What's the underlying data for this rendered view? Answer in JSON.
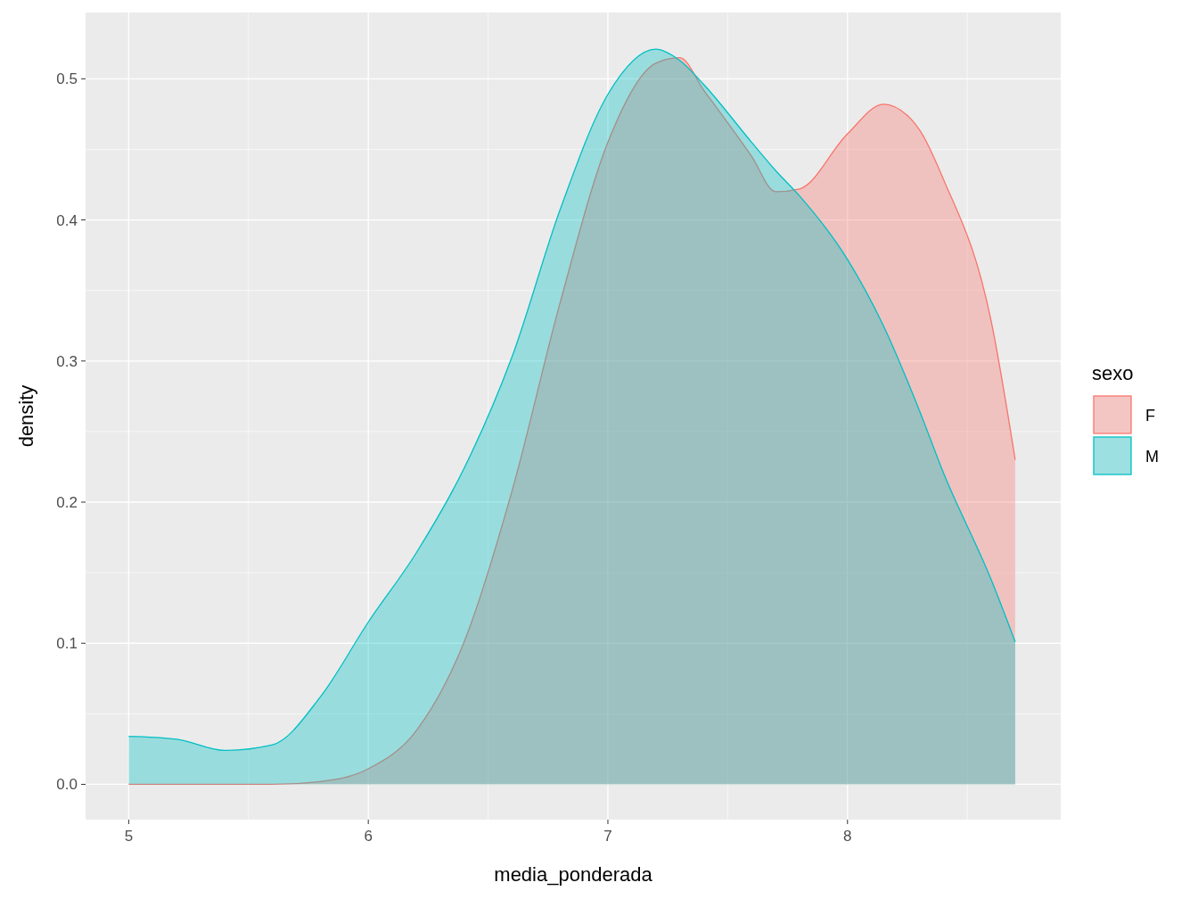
{
  "chart_data": {
    "type": "area",
    "xlabel": "media_ponderada",
    "ylabel": "density",
    "legend_title": "sexo",
    "legend": "right",
    "grid": true,
    "x": [
      5,
      5.2,
      5.4,
      5.6,
      5.8,
      6,
      6.2,
      6.4,
      6.6,
      6.8,
      7,
      7.2,
      7.3,
      7.4,
      7.6,
      7.7,
      7.8,
      8,
      8.15,
      8.3,
      8.4,
      8.6,
      8.7
    ],
    "series": [
      {
        "name": "F",
        "color": "#f8766d",
        "values": [
          0,
          0,
          0,
          0,
          0.002,
          0.011,
          0.038,
          0.101,
          0.208,
          0.341,
          0.455,
          0.511,
          0.515,
          0.492,
          0.445,
          0.42,
          0.422,
          0.461,
          0.482,
          0.464,
          0.429,
          0.328,
          0.23
        ]
      },
      {
        "name": "M",
        "color": "#00bfc4",
        "values": [
          0.034,
          0.032,
          0.024,
          0.028,
          0.062,
          0.115,
          0.164,
          0.224,
          0.303,
          0.407,
          0.489,
          0.521,
          0.513,
          0.496,
          0.455,
          0.435,
          0.417,
          0.372,
          0.325,
          0.265,
          0.221,
          0.145,
          0.101
        ]
      }
    ],
    "xlim": [
      4.82,
      8.89
    ],
    "ylim": [
      -0.025,
      0.547
    ],
    "xticks": [
      5,
      6,
      7,
      8
    ],
    "yticks": [
      {
        "value": 0,
        "label": "0.0"
      },
      0.1,
      0.2,
      0.3,
      0.4,
      0.5
    ]
  }
}
